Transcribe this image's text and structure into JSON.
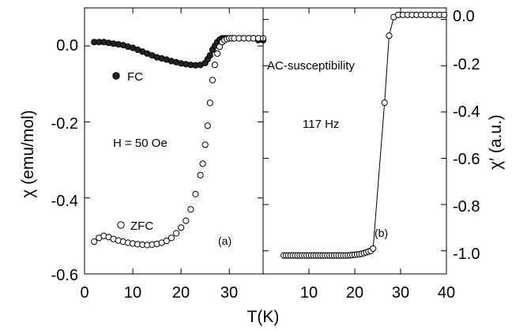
{
  "chart_data": [
    {
      "panel": "left",
      "type": "scatter",
      "xlabel": "T(K)",
      "ylabel": "χ (emu/mol)",
      "xlim": [
        0,
        37
      ],
      "ylim": [
        -0.6,
        0.1
      ],
      "xticks": [
        0,
        10,
        20,
        30
      ],
      "xtick_labels": [
        "0",
        "10",
        "20",
        "30"
      ],
      "yticks": [
        0.0,
        -0.2,
        -0.4,
        -0.6
      ],
      "ytick_labels": [
        "0.0",
        "-0.2",
        "-0.4",
        "-0.6"
      ],
      "grid": false,
      "annotations": [
        {
          "text": "FC",
          "x": 8.5,
          "y": -0.085
        },
        {
          "text": "H = 50 Oe",
          "x": 7.5,
          "y": -0.265
        },
        {
          "text": "ZFC",
          "x": 9.5,
          "y": -0.475
        },
        {
          "text": "(a)",
          "x": 28.2,
          "y": -0.515
        }
      ],
      "series": [
        {
          "name": "FC",
          "marker": "filled-circle",
          "x": [
            2,
            3,
            4,
            5,
            6,
            7,
            8,
            9,
            10,
            11,
            12,
            13,
            14,
            15,
            16,
            17,
            18,
            19,
            20,
            21,
            22,
            23,
            24,
            25,
            25.5,
            26,
            26.5,
            27,
            27.5,
            28,
            28.5,
            29,
            29.5,
            30,
            30.5,
            31,
            32,
            33,
            34,
            35,
            36,
            37
          ],
          "y": [
            0.01,
            0.01,
            0.01,
            0.008,
            0.006,
            0.004,
            0.002,
            -0.002,
            -0.005,
            -0.01,
            -0.015,
            -0.02,
            -0.025,
            -0.03,
            -0.033,
            -0.036,
            -0.04,
            -0.043,
            -0.046,
            -0.048,
            -0.05,
            -0.051,
            -0.05,
            -0.045,
            -0.035,
            -0.025,
            -0.01,
            0.0,
            0.01,
            0.016,
            0.02,
            0.02,
            0.02,
            0.02,
            0.02,
            0.02,
            0.02,
            0.02,
            0.02,
            0.02,
            0.015,
            0.015
          ]
        },
        {
          "name": "ZFC",
          "marker": "open-circle",
          "x": [
            2,
            3,
            4,
            5,
            6,
            7,
            8,
            9,
            10,
            11,
            12,
            13,
            14,
            15,
            16,
            17,
            18,
            19,
            20,
            21,
            22,
            23,
            24,
            24.5,
            25,
            25.5,
            26,
            26.5,
            27,
            27.5,
            28,
            28.5,
            29,
            29.5,
            30,
            30.5,
            31,
            32,
            33,
            34,
            35,
            36,
            37
          ],
          "y": [
            -0.515,
            -0.505,
            -0.5,
            -0.503,
            -0.508,
            -0.512,
            -0.515,
            -0.518,
            -0.52,
            -0.522,
            -0.523,
            -0.524,
            -0.523,
            -0.521,
            -0.518,
            -0.513,
            -0.505,
            -0.493,
            -0.478,
            -0.46,
            -0.43,
            -0.39,
            -0.34,
            -0.31,
            -0.26,
            -0.21,
            -0.15,
            -0.09,
            -0.05,
            -0.02,
            -0.002,
            0.01,
            0.015,
            0.018,
            0.02,
            0.02,
            0.02,
            0.02,
            0.02,
            0.02,
            0.02,
            0.02,
            0.02
          ]
        }
      ]
    },
    {
      "panel": "right",
      "type": "line",
      "xlabel": "T(K)",
      "ylabel": "χ′ (a.u.)",
      "xlim": [
        0,
        40
      ],
      "ylim": [
        -1.1,
        0.05
      ],
      "xticks": [
        0,
        10,
        20,
        30,
        40
      ],
      "xtick_labels": [
        "",
        "10",
        "20",
        "30",
        "40"
      ],
      "yticks": [
        0.0,
        -0.2,
        -0.4,
        -0.6,
        -0.8,
        -1.0
      ],
      "ytick_labels": [
        "0.0",
        "-0.2",
        "-0.4",
        "-0.6",
        "-0.8",
        "-1.0"
      ],
      "grid": false,
      "annotations": [
        {
          "text": "AC-susceptibility",
          "x": 0.5,
          "y": -0.17
        },
        {
          "text": "117 Hz",
          "x": 4.8,
          "y": -0.44
        },
        {
          "text": "(b)",
          "x": 24.5,
          "y": -0.985
        }
      ],
      "series": [
        {
          "name": "117 Hz",
          "marker": "open-circle-with-line",
          "x": [
            4.5,
            5,
            5.5,
            6,
            6.5,
            7,
            7.5,
            8,
            8.5,
            9,
            9.5,
            10,
            10.5,
            11,
            11.5,
            12,
            12.5,
            13,
            13.5,
            14,
            14.5,
            15,
            15.5,
            16,
            16.5,
            17,
            17.5,
            18,
            18.5,
            19,
            19.5,
            20,
            20.5,
            21,
            21.5,
            22,
            22.5,
            23,
            23.5,
            24,
            26.5,
            27.5,
            28.5,
            29.5,
            30.5,
            31.5,
            32.5,
            33.5,
            34.5,
            35.5,
            36.5,
            37.5,
            38.5,
            39.5
          ],
          "y": [
            -1.02,
            -1.02,
            -1.02,
            -1.02,
            -1.02,
            -1.02,
            -1.02,
            -1.02,
            -1.02,
            -1.02,
            -1.02,
            -1.02,
            -1.02,
            -1.02,
            -1.02,
            -1.02,
            -1.02,
            -1.02,
            -1.02,
            -1.02,
            -1.02,
            -1.02,
            -1.02,
            -1.02,
            -1.02,
            -1.02,
            -1.02,
            -1.02,
            -1.02,
            -1.019,
            -1.018,
            -1.017,
            -1.016,
            -1.015,
            -1.013,
            -1.01,
            -1.007,
            -1.003,
            -1.0,
            -0.99,
            -0.36,
            -0.07,
            0.01,
            0.02,
            0.02,
            0.02,
            0.02,
            0.02,
            0.02,
            0.02,
            0.02,
            0.02,
            0.02,
            0.02
          ]
        }
      ]
    }
  ]
}
